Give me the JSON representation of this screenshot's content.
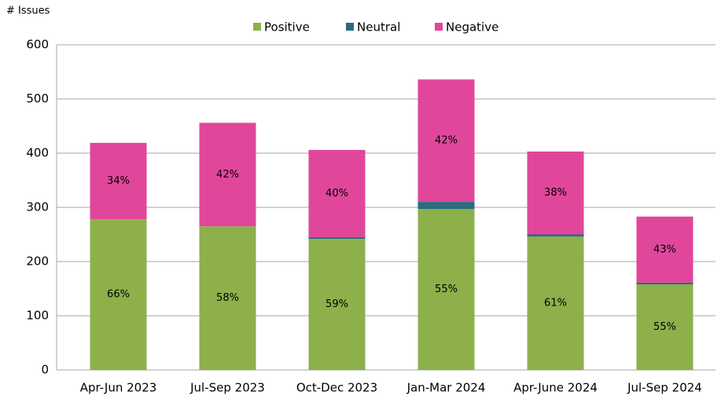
{
  "chart_data": {
    "type": "stacked_bar",
    "y_axis_label": "# Issues",
    "categories": [
      "Apr-Jun 2023",
      "Jul-Sep 2023",
      "Oct-Dec 2023",
      "Jan-Mar 2024",
      "Apr-June 2024",
      "Jul-Sep 2024"
    ],
    "series": [
      {
        "name": "Positive",
        "color": "#8db04a",
        "values": [
          278,
          265,
          242,
          297,
          246,
          158
        ],
        "data_labels": [
          "66%",
          "58%",
          "59%",
          "55%",
          "61%",
          "55%"
        ]
      },
      {
        "name": "Neutral",
        "color": "#2a6b7f",
        "values": [
          0,
          0,
          3,
          13,
          4,
          3
        ]
      },
      {
        "name": "Negative",
        "color": "#e0479b",
        "values": [
          141,
          191,
          161,
          226,
          153,
          122
        ],
        "data_labels": [
          "34%",
          "42%",
          "40%",
          "42%",
          "38%",
          "43%"
        ]
      }
    ],
    "ylim": [
      0,
      600
    ],
    "yticks": [
      0,
      100,
      200,
      300,
      400,
      500,
      600
    ],
    "grid": true,
    "legend": "top"
  }
}
